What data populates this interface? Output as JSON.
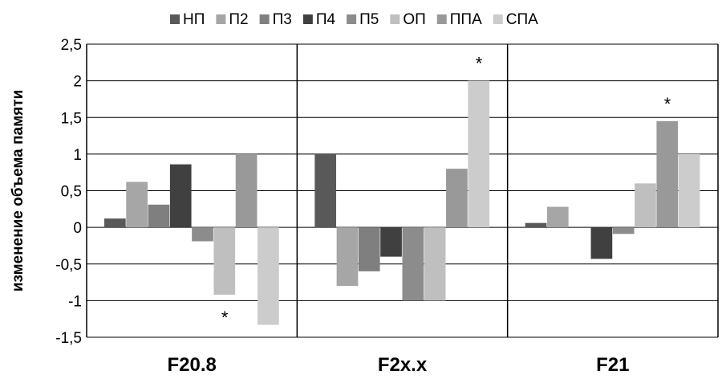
{
  "chart_data": {
    "type": "bar",
    "title": "",
    "xlabel": "",
    "ylabel": "изменение объема памяти",
    "ylim": [
      -1.5,
      2.5
    ],
    "yticks": [
      -1.5,
      -1,
      -0.5,
      0,
      0.5,
      1,
      1.5,
      2,
      2.5
    ],
    "ytick_labels": [
      "-1,5",
      "-1",
      "-0,5",
      "0",
      "0,5",
      "1",
      "1,5",
      "2",
      "2,5"
    ],
    "grid": true,
    "legend_position": "top",
    "categories": [
      "F20.8",
      "F2x.x",
      "F21"
    ],
    "series": [
      {
        "name": "НП",
        "color": "#595959",
        "values": [
          0.12,
          1.0,
          0.06
        ]
      },
      {
        "name": "П2",
        "color": "#a6a6a6",
        "values": [
          0.62,
          -0.8,
          0.28
        ]
      },
      {
        "name": "П3",
        "color": "#7f7f7f",
        "values": [
          0.31,
          -0.6,
          0
        ]
      },
      {
        "name": "П4",
        "color": "#404040",
        "values": [
          0.86,
          -0.4,
          -0.43
        ]
      },
      {
        "name": "П5",
        "color": "#8c8c8c",
        "values": [
          -0.19,
          -1.0,
          -0.09
        ]
      },
      {
        "name": "ОП",
        "color": "#bfbfbf",
        "values": [
          -0.92,
          -1.0,
          0.6
        ]
      },
      {
        "name": "ППА",
        "color": "#999999",
        "values": [
          1.0,
          0.8,
          1.45
        ]
      },
      {
        "name": "СПА",
        "color": "#cccccc",
        "values": [
          -1.33,
          2.0,
          1.0
        ]
      }
    ],
    "annotations": [
      {
        "text": "*",
        "category": 0,
        "series": 5
      },
      {
        "text": "*",
        "category": 1,
        "series": 7
      },
      {
        "text": "*",
        "category": 2,
        "series": 6
      }
    ]
  }
}
